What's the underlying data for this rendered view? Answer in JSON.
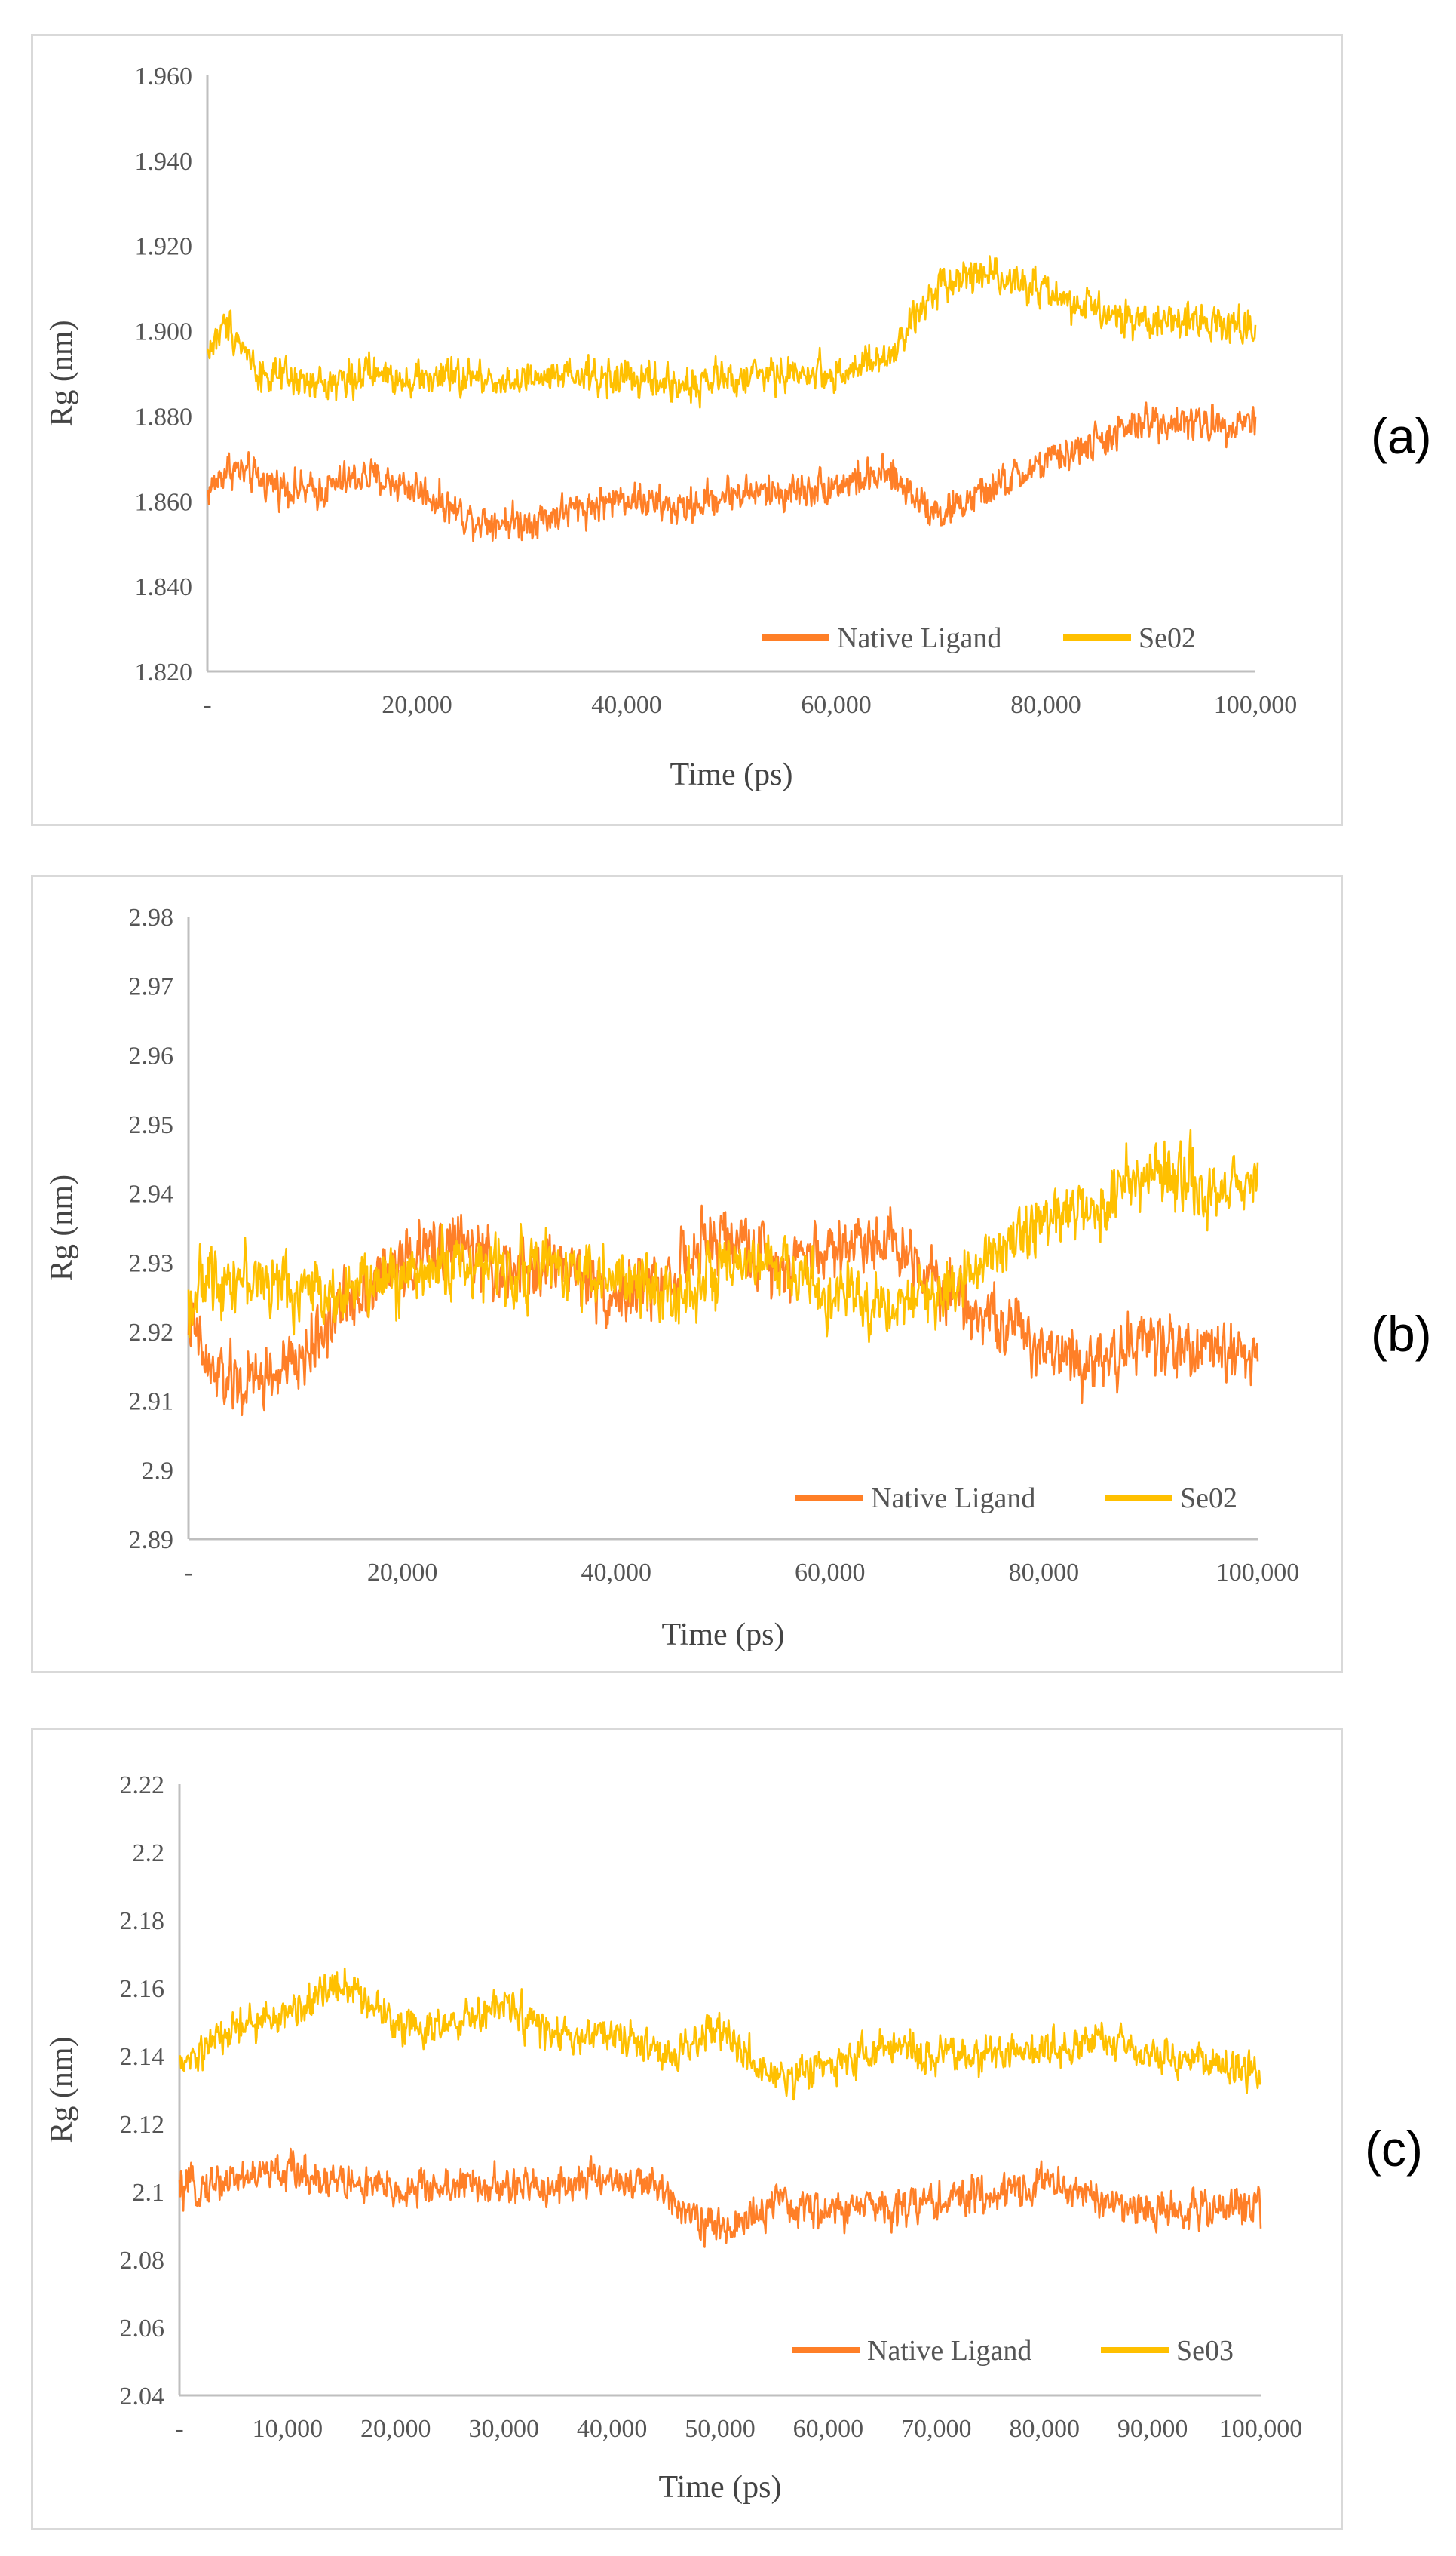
{
  "colors": {
    "native": "#FF7F27",
    "se": "#FFC000",
    "axis": "#bfbfbf",
    "text": "#555555"
  },
  "panel_labels": [
    "(a)",
    "(b)",
    "(c)"
  ],
  "chart_data": [
    {
      "type": "line",
      "panel": "(a)",
      "xlabel": "Time (ps)",
      "ylabel": "Rg (nm)",
      "xlim": [
        0,
        100000
      ],
      "ylim": [
        1.82,
        1.96
      ],
      "yticks": [
        1.82,
        1.84,
        1.86,
        1.88,
        1.9,
        1.92,
        1.94,
        1.96
      ],
      "ytick_labels": [
        "1.820",
        "1.840",
        "1.860",
        "1.880",
        "1.900",
        "1.920",
        "1.940",
        "1.960"
      ],
      "xticks": [
        0,
        20000,
        40000,
        60000,
        80000,
        100000
      ],
      "xtick_labels": [
        "-",
        "20,000",
        "40,000",
        "60,000",
        "80,000",
        "100,000"
      ],
      "legend_position": "bottom-right",
      "series": [
        {
          "name": "Native Ligand",
          "color": "#FF7F27",
          "noise": 0.009,
          "x": [
            0,
            2000,
            5000,
            10000,
            15000,
            20000,
            25000,
            30000,
            35000,
            40000,
            45000,
            50000,
            55000,
            60000,
            65000,
            70000,
            75000,
            80000,
            85000,
            90000,
            95000,
            100000
          ],
          "y": [
            1.862,
            1.868,
            1.865,
            1.862,
            1.866,
            1.863,
            1.856,
            1.855,
            1.858,
            1.861,
            1.858,
            1.862,
            1.862,
            1.864,
            1.866,
            1.857,
            1.863,
            1.869,
            1.874,
            1.879,
            1.878,
            1.879
          ]
        },
        {
          "name": "Se02",
          "color": "#FFC000",
          "noise": 0.009,
          "x": [
            0,
            2000,
            5000,
            10000,
            15000,
            20000,
            25000,
            30000,
            35000,
            40000,
            45000,
            50000,
            55000,
            60000,
            65000,
            70000,
            75000,
            80000,
            85000,
            90000,
            95000,
            100000
          ],
          "y": [
            1.895,
            1.902,
            1.89,
            1.887,
            1.89,
            1.889,
            1.889,
            1.888,
            1.889,
            1.889,
            1.887,
            1.889,
            1.89,
            1.89,
            1.893,
            1.912,
            1.914,
            1.909,
            1.904,
            1.902,
            1.903,
            1.9
          ]
        }
      ]
    },
    {
      "type": "line",
      "panel": "(b)",
      "xlabel": "Time (ps)",
      "ylabel": "Rg (nm)",
      "xlim": [
        0,
        100000
      ],
      "ylim": [
        2.89,
        2.98
      ],
      "yticks": [
        2.89,
        2.9,
        2.91,
        2.92,
        2.93,
        2.94,
        2.95,
        2.96,
        2.97,
        2.98
      ],
      "ytick_labels": [
        "2.89",
        "2.9",
        "2.91",
        "2.92",
        "2.93",
        "2.94",
        "2.95",
        "2.96",
        "2.97",
        "2.98"
      ],
      "xticks": [
        0,
        20000,
        40000,
        60000,
        80000,
        100000
      ],
      "xtick_labels": [
        "-",
        "20,000",
        "40,000",
        "60,000",
        "80,000",
        "100,000"
      ],
      "legend_position": "bottom-right",
      "series": [
        {
          "name": "Native Ligand",
          "color": "#FF7F27",
          "noise": 0.01,
          "x": [
            0,
            2000,
            5000,
            10000,
            15000,
            20000,
            25000,
            30000,
            35000,
            40000,
            45000,
            50000,
            55000,
            60000,
            65000,
            70000,
            75000,
            80000,
            85000,
            90000,
            95000,
            100000
          ],
          "y": [
            2.922,
            2.914,
            2.912,
            2.915,
            2.925,
            2.93,
            2.933,
            2.928,
            2.93,
            2.925,
            2.928,
            2.934,
            2.93,
            2.932,
            2.934,
            2.928,
            2.922,
            2.918,
            2.916,
            2.919,
            2.917,
            2.917
          ]
        },
        {
          "name": "Se02",
          "color": "#FFC000",
          "noise": 0.01,
          "x": [
            0,
            2000,
            5000,
            10000,
            15000,
            20000,
            25000,
            30000,
            35000,
            40000,
            45000,
            50000,
            55000,
            60000,
            65000,
            70000,
            75000,
            80000,
            85000,
            90000,
            95000,
            100000
          ],
          "y": [
            2.924,
            2.928,
            2.928,
            2.926,
            2.926,
            2.928,
            2.93,
            2.929,
            2.93,
            2.927,
            2.926,
            2.928,
            2.93,
            2.925,
            2.924,
            2.925,
            2.932,
            2.936,
            2.938,
            2.944,
            2.94,
            2.942
          ]
        }
      ]
    },
    {
      "type": "line",
      "panel": "(c)",
      "xlabel": "Time (ps)",
      "ylabel": "Rg (nm)",
      "xlim": [
        0,
        100000
      ],
      "ylim": [
        2.04,
        2.22
      ],
      "yticks": [
        2.04,
        2.06,
        2.08,
        2.1,
        2.12,
        2.14,
        2.16,
        2.18,
        2.2,
        2.22
      ],
      "ytick_labels": [
        "2.04",
        "2.06",
        "2.08",
        "2.1",
        "2.12",
        "2.14",
        "2.16",
        "2.18",
        "2.2",
        "2.22"
      ],
      "xticks": [
        0,
        10000,
        20000,
        30000,
        40000,
        50000,
        60000,
        70000,
        80000,
        90000,
        100000
      ],
      "xtick_labels": [
        "-",
        "10,000",
        "20,000",
        "30,000",
        "40,000",
        "50,000",
        "60,000",
        "70,000",
        "80,000",
        "90,000",
        "100,000"
      ],
      "legend_position": "bottom-right",
      "series": [
        {
          "name": "Native Ligand",
          "color": "#FF7F27",
          "noise": 0.012,
          "x": [
            0,
            5000,
            10000,
            15000,
            20000,
            25000,
            30000,
            35000,
            40000,
            45000,
            50000,
            55000,
            60000,
            65000,
            70000,
            75000,
            80000,
            85000,
            90000,
            95000,
            100000
          ],
          "y": [
            2.1,
            2.104,
            2.106,
            2.103,
            2.1,
            2.102,
            2.101,
            2.102,
            2.104,
            2.1,
            2.088,
            2.096,
            2.094,
            2.096,
            2.097,
            2.099,
            2.103,
            2.098,
            2.094,
            2.095,
            2.096
          ]
        },
        {
          "name": "Se03",
          "color": "#FFC000",
          "noise": 0.012,
          "x": [
            0,
            5000,
            10000,
            15000,
            20000,
            25000,
            30000,
            35000,
            40000,
            45000,
            50000,
            55000,
            60000,
            65000,
            70000,
            75000,
            80000,
            85000,
            90000,
            95000,
            100000
          ],
          "y": [
            2.136,
            2.148,
            2.152,
            2.162,
            2.15,
            2.148,
            2.155,
            2.145,
            2.146,
            2.14,
            2.148,
            2.132,
            2.138,
            2.142,
            2.14,
            2.14,
            2.142,
            2.146,
            2.14,
            2.138,
            2.135
          ]
        }
      ]
    }
  ]
}
